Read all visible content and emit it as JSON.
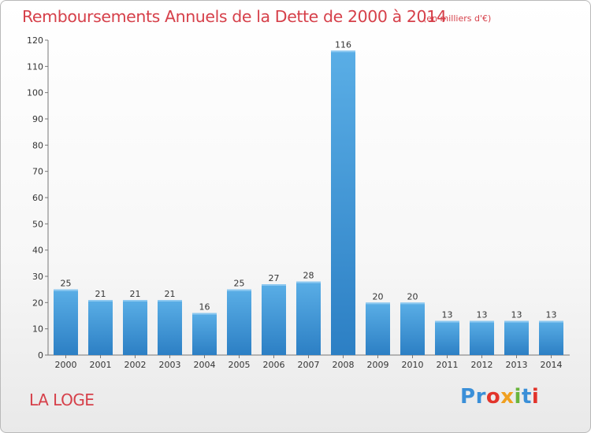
{
  "header": {
    "title": "Remboursements Annuels de la Dette de 2000 à 2014",
    "subtitle": "(en milliers d'€)"
  },
  "footer": {
    "place": "LA LOGE",
    "logo": "Proxiti",
    "logo_colors": [
      "#3a8fd8",
      "#3a8fd8",
      "#e2342b",
      "#f0a020",
      "#6ab53c",
      "#3a8fd8",
      "#e2342b"
    ]
  },
  "colors": {
    "title": "#d6404a",
    "bar_top": "#5aaee6",
    "bar_bottom": "#2c7fc4"
  },
  "chart_data": {
    "type": "bar",
    "categories": [
      "2000",
      "2001",
      "2002",
      "2003",
      "2004",
      "2005",
      "2006",
      "2007",
      "2008",
      "2009",
      "2010",
      "2011",
      "2012",
      "2013",
      "2014"
    ],
    "values": [
      25,
      21,
      21,
      21,
      16,
      25,
      27,
      28,
      116,
      20,
      20,
      13,
      13,
      13,
      13
    ],
    "title": "Remboursements Annuels de la Dette de 2000 à 2014",
    "ylim": [
      0,
      120
    ],
    "yticks": [
      0,
      10,
      20,
      30,
      40,
      50,
      60,
      70,
      80,
      90,
      100,
      110,
      120
    ],
    "grid": false,
    "data_labels": true
  }
}
